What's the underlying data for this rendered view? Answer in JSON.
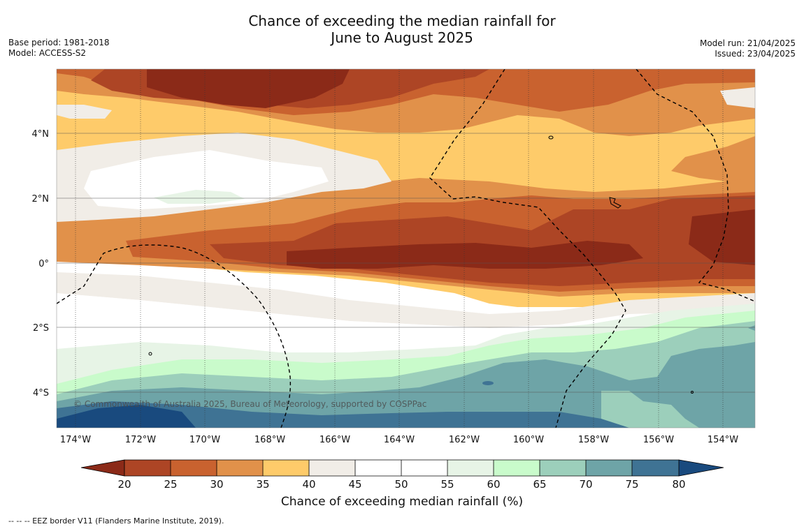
{
  "header": {
    "title_line1": "Chance of exceeding the median rainfall for",
    "title_line2": "June to August 2025",
    "base_period": "Base period: 1981-2018",
    "model": "Model: ACCESS-S2",
    "model_run": "Model run: 21/04/2025",
    "issued": "Issued: 23/04/2025"
  },
  "map": {
    "lon_labels": [
      "174°W",
      "172°W",
      "170°W",
      "168°W",
      "166°W",
      "164°W",
      "162°W",
      "160°W",
      "158°W",
      "156°W",
      "154°W"
    ],
    "lat_labels": [
      "4°N",
      "2°N",
      "0°",
      "2°S",
      "4°S"
    ],
    "copyright": "© Commonwealth of Australia 2025, Bureau of Meteorology, supported by COSPPac",
    "eez_line_style": "dashed"
  },
  "colorbar": {
    "title": "Chance of exceeding median rainfall (%)",
    "ticks": [
      "20",
      "25",
      "30",
      "35",
      "40",
      "45",
      "50",
      "55",
      "60",
      "65",
      "70",
      "75",
      "80"
    ],
    "colors": {
      "below20": "#8b2a18",
      "20-25": "#ad4525",
      "25-30": "#c9622f",
      "30-35": "#e1914a",
      "35-40": "#fecb6a",
      "40-45": "#f1ede7",
      "45-50": "#ffffff",
      "50-55": "#ffffff",
      "55-60": "#e7f4e6",
      "60-65": "#c9fbcb",
      "65-70": "#9ccfbb",
      "70-75": "#6ea4a7",
      "75-80": "#3f7394",
      "above80": "#194a7e"
    }
  },
  "footer": {
    "legend": "--  --  -- EEZ border V11 (Flanders Marine Institute, 2019)."
  }
}
